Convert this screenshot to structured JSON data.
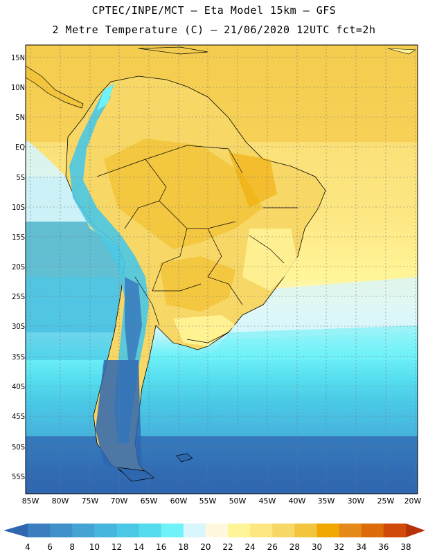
{
  "title_line1": "CPTEC/INPE/MCT –  Eta Model 15km – GFS",
  "title_line2": "2 Metre Temperature (C) – 21/06/2020 12UTC fct=2h",
  "lat_labels": [
    "15N",
    "10N",
    "5N",
    "EQ",
    "5S",
    "10S",
    "15S",
    "20S",
    "25S",
    "30S",
    "35S",
    "40S",
    "45S",
    "50S",
    "55S"
  ],
  "lon_labels": [
    "85W",
    "80W",
    "75W",
    "70W",
    "65W",
    "60W",
    "55W",
    "50W",
    "45W",
    "40W",
    "35W",
    "30W",
    "25W",
    "20W"
  ],
  "colorbar": {
    "values": [
      "4",
      "6",
      "8",
      "10",
      "12",
      "14",
      "16",
      "18",
      "20",
      "22",
      "24",
      "26",
      "28",
      "30",
      "32",
      "34",
      "36",
      "38"
    ],
    "colors": [
      "#2f66b0",
      "#3a7ebf",
      "#3f8fc9",
      "#43a3d3",
      "#47b6de",
      "#4ac8e6",
      "#54dcee",
      "#6ff2f8",
      "#d8f6fb",
      "#fff8df",
      "#fff598",
      "#fde783",
      "#f7d766",
      "#f2c53c",
      "#f0a800",
      "#e58a19",
      "#dc6c0a",
      "#cf4a0b",
      "#b83208"
    ]
  }
}
